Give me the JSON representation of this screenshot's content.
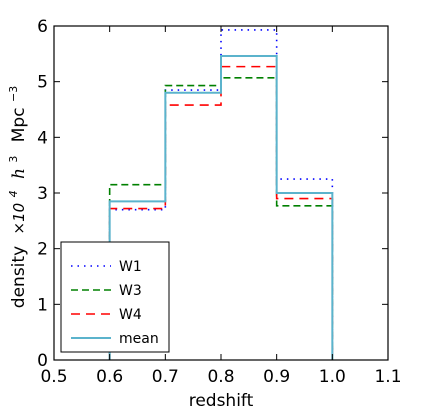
{
  "chart_data": {
    "type": "line",
    "drawstyle": "steps",
    "xlabel": "redshift",
    "ylabel_parts": {
      "density": "density",
      "factor": "×10",
      "factor_exp": "4",
      "h": "h",
      "h_exp": "3",
      "unit": "Mpc",
      "unit_exp": "−3"
    },
    "xlim": [
      0.5,
      1.1
    ],
    "ylim": [
      0,
      6
    ],
    "x_ticks": [
      0.5,
      0.6,
      0.7,
      0.8,
      0.9,
      1.0,
      1.1
    ],
    "x_tick_labels": [
      "0.5",
      "0.6",
      "0.7",
      "0.8",
      "0.9",
      "1.0",
      "1.1"
    ],
    "y_ticks": [
      0,
      1,
      2,
      3,
      4,
      5,
      6
    ],
    "y_tick_labels": [
      "0",
      "1",
      "2",
      "3",
      "4",
      "5",
      "6"
    ],
    "bin_edges": [
      0.6,
      0.7,
      0.8,
      0.9,
      1.0
    ],
    "series": [
      {
        "name": "W1",
        "values": [
          2.7,
          4.85,
          5.93,
          3.25
        ],
        "color": "#0000ff",
        "style": "dotted"
      },
      {
        "name": "W3",
        "values": [
          3.15,
          4.93,
          5.07,
          2.77
        ],
        "color": "#008000",
        "style": "dashed"
      },
      {
        "name": "W4",
        "values": [
          2.72,
          4.58,
          5.27,
          2.9
        ],
        "color": "#ff0000",
        "style": "longdash"
      },
      {
        "name": "mean",
        "values": [
          2.85,
          4.8,
          5.46,
          3.0
        ],
        "color": "#5bb3cc",
        "style": "solid"
      }
    ],
    "legend_position": "lower-left",
    "grid": false
  }
}
